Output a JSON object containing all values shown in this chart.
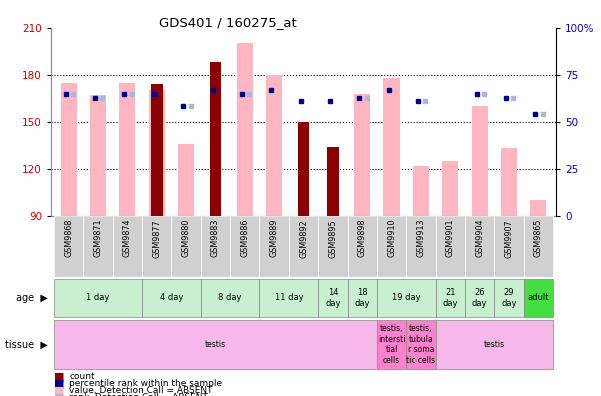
{
  "title": "GDS401 / 160275_at",
  "samples": [
    "GSM9868",
    "GSM9871",
    "GSM9874",
    "GSM9877",
    "GSM9880",
    "GSM9883",
    "GSM9886",
    "GSM9889",
    "GSM9892",
    "GSM9895",
    "GSM9898",
    "GSM9910",
    "GSM9913",
    "GSM9901",
    "GSM9904",
    "GSM9907",
    "GSM9865"
  ],
  "count_values": [
    null,
    null,
    null,
    174,
    null,
    188,
    null,
    null,
    150,
    134,
    null,
    null,
    null,
    null,
    null,
    null,
    null
  ],
  "pink_bar_values": [
    175,
    167,
    175,
    170,
    136,
    null,
    200,
    180,
    null,
    null,
    168,
    178,
    122,
    125,
    160,
    133,
    100
  ],
  "blue_dot_values": [
    168,
    165,
    168,
    168,
    160,
    170,
    168,
    170,
    163,
    163,
    165,
    170,
    163,
    null,
    168,
    165,
    155
  ],
  "light_blue_dot_values": [
    168,
    165,
    168,
    null,
    160,
    null,
    168,
    null,
    null,
    null,
    165,
    null,
    163,
    null,
    168,
    165,
    155
  ],
  "ymin": 90,
  "ymax": 210,
  "yticks": [
    90,
    120,
    150,
    180,
    210
  ],
  "right_yticks": [
    0,
    25,
    50,
    75,
    100
  ],
  "age_groups": [
    {
      "label": "1 day",
      "samples": [
        "GSM9868",
        "GSM9871",
        "GSM9874"
      ],
      "color": "#c8f0d0"
    },
    {
      "label": "4 day",
      "samples": [
        "GSM9877",
        "GSM9880"
      ],
      "color": "#c8f0d0"
    },
    {
      "label": "8 day",
      "samples": [
        "GSM9883",
        "GSM9886"
      ],
      "color": "#c8f0d0"
    },
    {
      "label": "11 day",
      "samples": [
        "GSM9889",
        "GSM9892"
      ],
      "color": "#c8f0d0"
    },
    {
      "label": "14\nday",
      "samples": [
        "GSM9895"
      ],
      "color": "#c8f0d0"
    },
    {
      "label": "18\nday",
      "samples": [
        "GSM9898"
      ],
      "color": "#c8f0d0"
    },
    {
      "label": "19 day",
      "samples": [
        "GSM9910",
        "GSM9913"
      ],
      "color": "#c8f0d0"
    },
    {
      "label": "21\nday",
      "samples": [
        "GSM9901"
      ],
      "color": "#c8f0d0"
    },
    {
      "label": "26\nday",
      "samples": [
        "GSM9904"
      ],
      "color": "#c8f0d0"
    },
    {
      "label": "29\nday",
      "samples": [
        "GSM9907"
      ],
      "color": "#c8f0d0"
    },
    {
      "label": "adult",
      "samples": [
        "GSM9865"
      ],
      "color": "#44dd44"
    }
  ],
  "tissue_groups": [
    {
      "label": "testis",
      "samples": [
        "GSM9868",
        "GSM9871",
        "GSM9874",
        "GSM9877",
        "GSM9880",
        "GSM9883",
        "GSM9886",
        "GSM9889",
        "GSM9892",
        "GSM9895",
        "GSM9898"
      ],
      "color": "#f5b8e8"
    },
    {
      "label": "testis,\nintersti\ntial\ncells",
      "samples": [
        "GSM9910"
      ],
      "color": "#ff80cc"
    },
    {
      "label": "testis,\ntubula\nr soma\ntic cells",
      "samples": [
        "GSM9913"
      ],
      "color": "#ff80cc"
    },
    {
      "label": "testis",
      "samples": [
        "GSM9901",
        "GSM9904",
        "GSM9907",
        "GSM9865"
      ],
      "color": "#f5b8e8"
    }
  ],
  "count_color": "#8b0000",
  "pink_bar_color": "#ffb6c1",
  "blue_dot_color": "#00008b",
  "light_blue_dot_color": "#aab8d8",
  "label_color_left": "#cc0000",
  "label_color_right": "#0000cc",
  "sample_cell_color": "#d0d0d0"
}
